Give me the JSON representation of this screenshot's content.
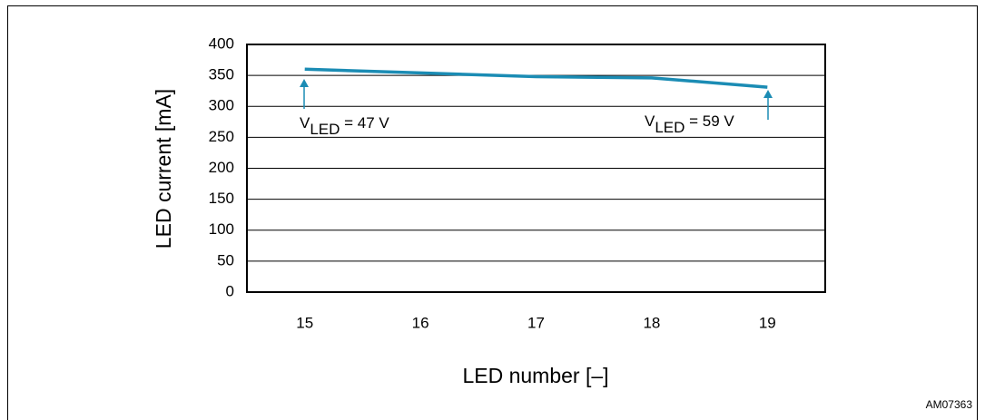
{
  "chart_data": {
    "type": "line",
    "x_label": "LED number [–]",
    "y_label": "LED current [mA]",
    "categories": [
      "15",
      "16",
      "17",
      "18",
      "19"
    ],
    "values": [
      360,
      354,
      348,
      346,
      331
    ],
    "color": "#1b8cb4",
    "ylim": [
      0,
      400
    ],
    "yticks": [
      0,
      50,
      100,
      150,
      200,
      250,
      300,
      350,
      400
    ],
    "grid": true,
    "annotations": [
      {
        "prefix": "V",
        "sub": "LED",
        "suffix": " = 47 V"
      },
      {
        "prefix": "V",
        "sub": "LED",
        "suffix": " = 59 V"
      }
    ],
    "figure_id": "AM07363"
  }
}
